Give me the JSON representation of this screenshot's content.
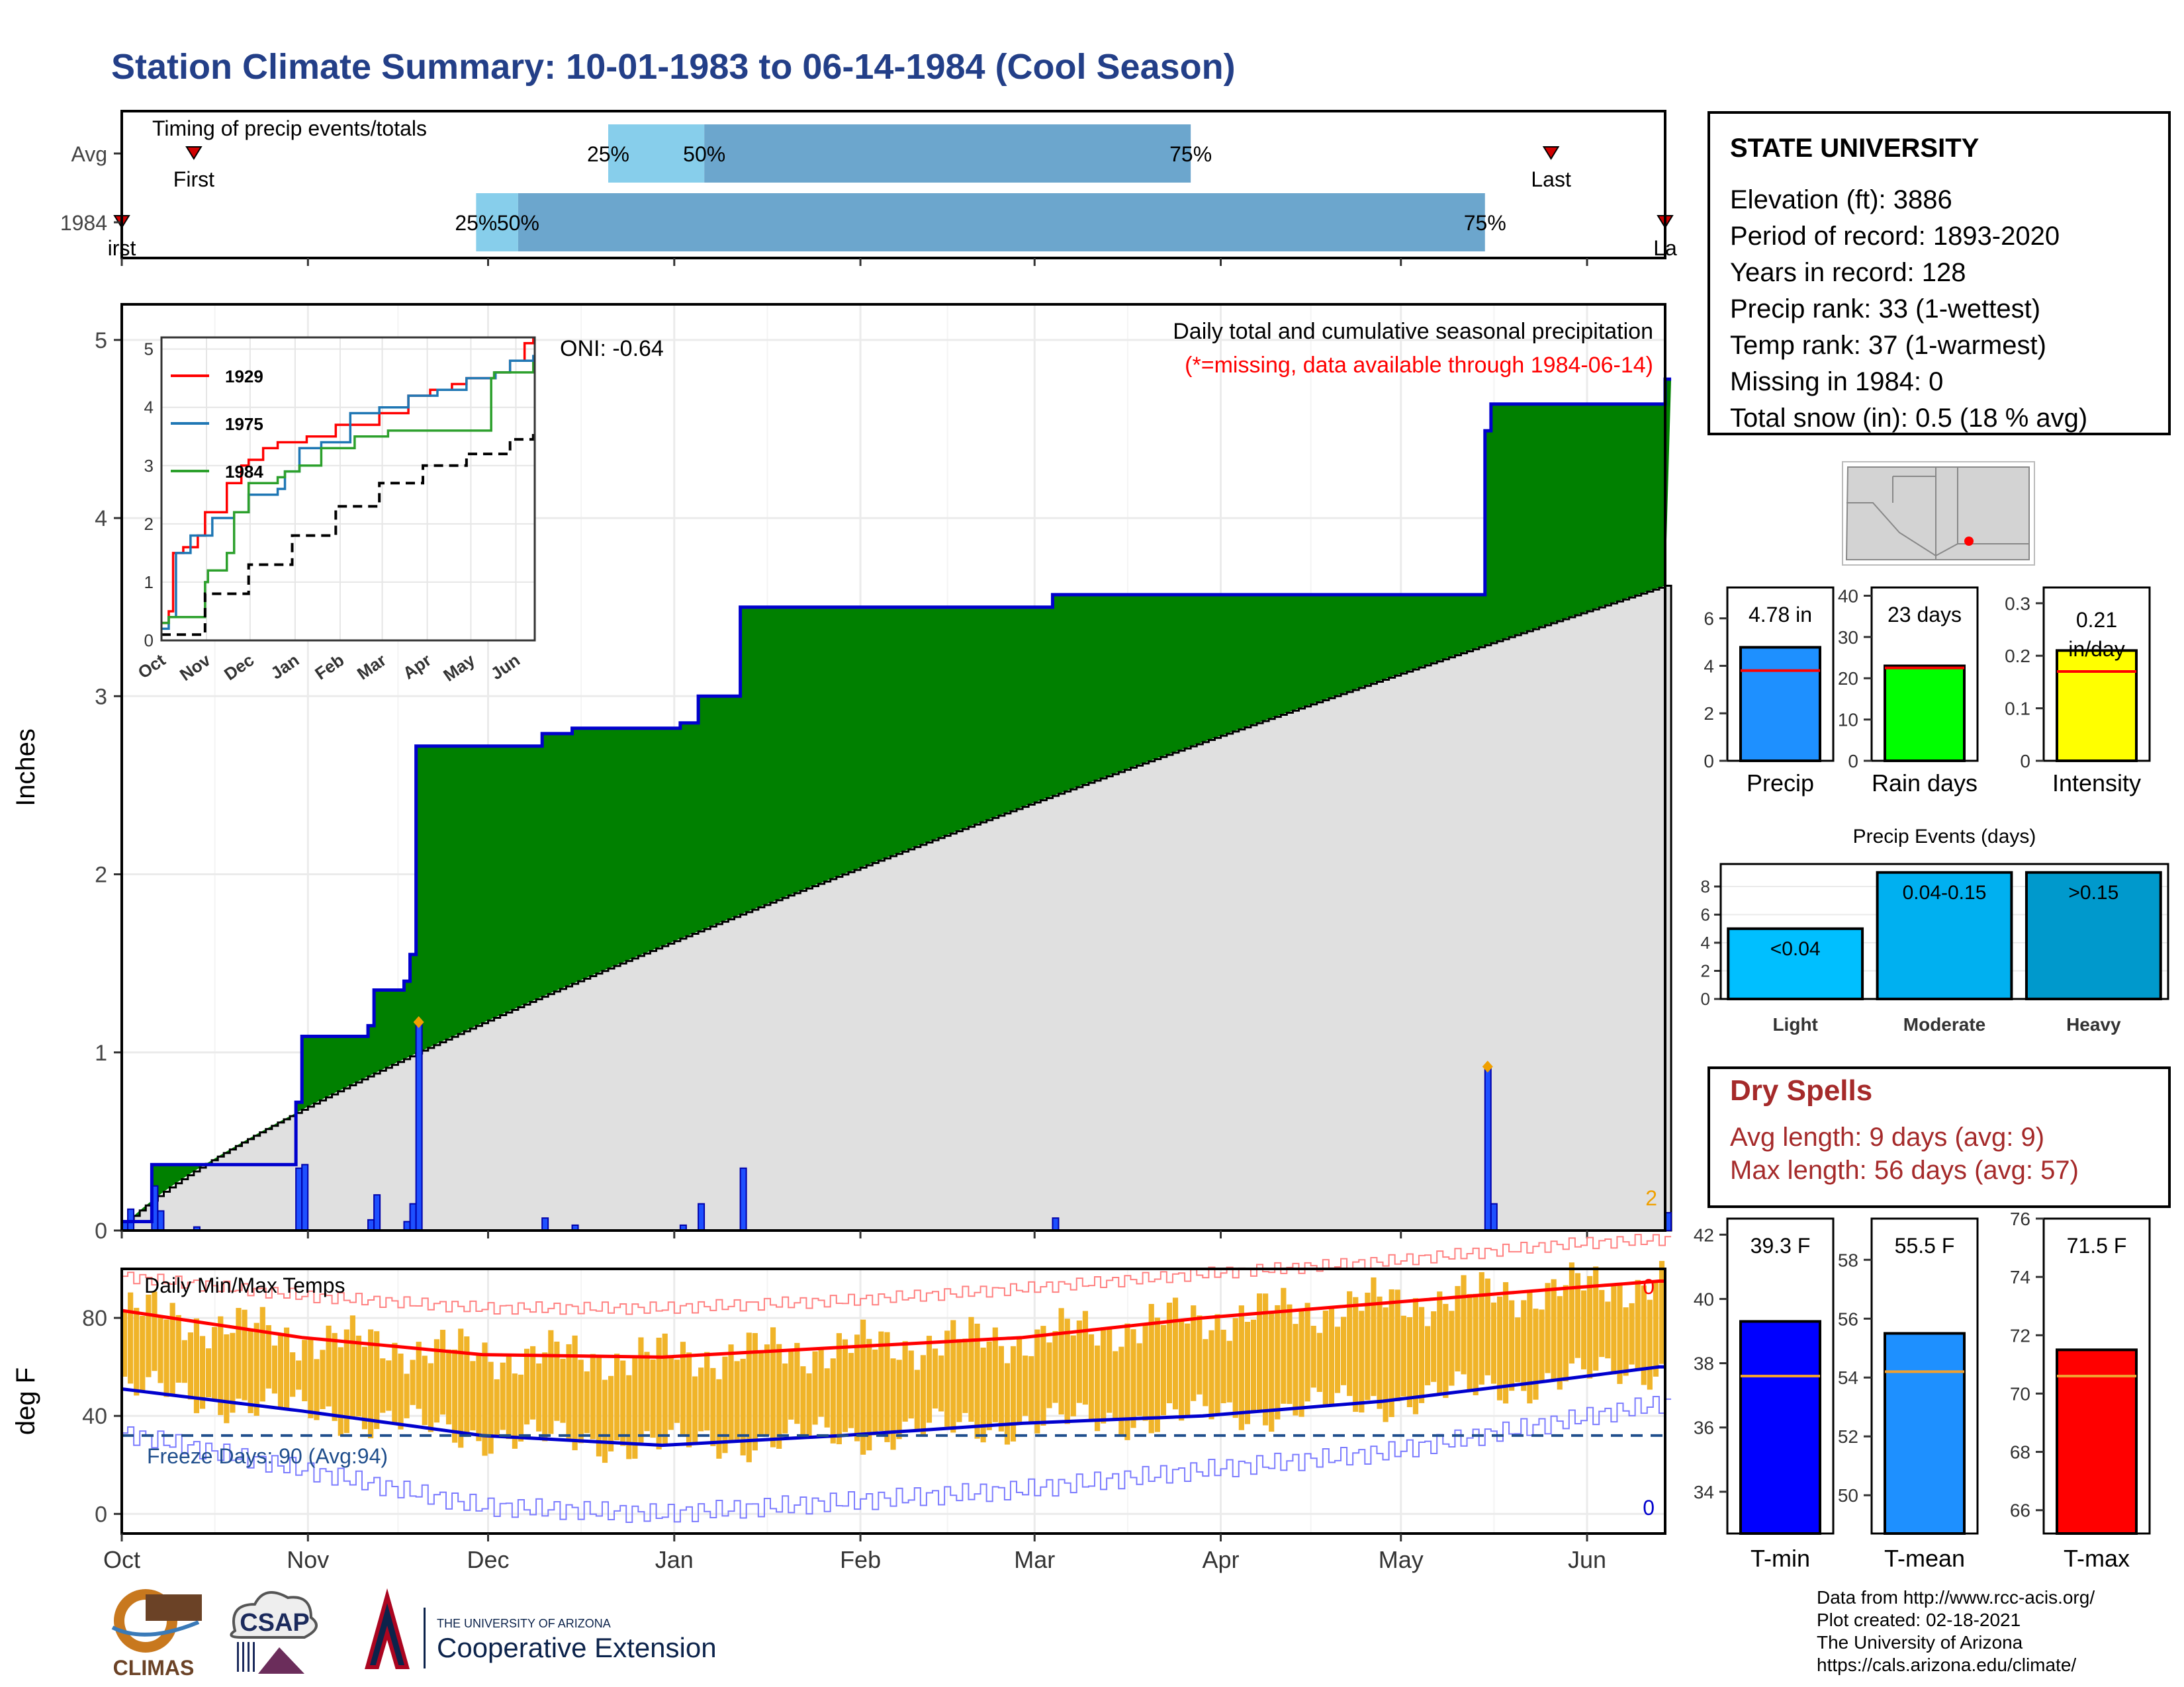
{
  "title": "Station Climate Summary: 10-01-1983 to 06-14-1984 (Cool Season)",
  "station": {
    "name": "STATE UNIVERSITY",
    "lines": [
      "Elevation (ft): 3886",
      "Period of record: 1893-2020",
      "Years in record: 128",
      "Precip rank: 33 (1-wettest)",
      "Temp rank: 37 (1-warmest)",
      "Missing in 1984: 0",
      "Total snow (in): 0.5 (18 % avg)"
    ]
  },
  "dry_spells": {
    "title": "Dry Spells",
    "avg": "Avg length: 9 days (avg: 9)",
    "max": "Max length: 56 days (avg: 57)"
  },
  "credits": [
    "Data from http://www.rcc-acis.org/",
    "Plot created: 02-18-2021",
    "The University of Arizona",
    "https://cals.arizona.edu/climate/"
  ],
  "logos": {
    "climas": "CLIMAS",
    "csap": "CSAP",
    "ua_line1": "THE UNIVERSITY OF ARIZONA",
    "ua_line2": "Cooperative Extension"
  },
  "colors": {
    "title": "#233f88",
    "green": "#008000",
    "precip_line": "#0000cd",
    "avg_fill": "#e0e0e0",
    "light_blue": "#87ceeb",
    "mid_blue": "#6ca6cd",
    "temp_bar": "#f0b429",
    "dry": "#a52a2a"
  },
  "chart_data": [
    {
      "id": "timing",
      "type": "bar",
      "title": "Timing of precip events/totals",
      "categories": [
        "Avg",
        "1984"
      ],
      "months": [
        "Oct",
        "Nov",
        "Dec",
        "Jan",
        "Feb",
        "Mar",
        "Apr",
        "May",
        "Jun"
      ],
      "rows": [
        {
          "name": "Avg",
          "first": "1983-10-13",
          "p25": "1983-12-21",
          "p50": "1984-01-06",
          "p75": "1984-03-27",
          "last": "1984-05-26",
          "labels": {
            "first": "First",
            "p25": "25%",
            "p50": "50%",
            "p75": "75%",
            "last": "Last"
          }
        },
        {
          "name": "1984",
          "first": "1983-10-01",
          "p25": "1983-11-29",
          "p50": "1983-12-06",
          "p75": "1984-05-15",
          "last": "1984-06-14",
          "labels": {
            "first": "irst",
            "p25": "25%",
            "p50": "50%",
            "p75": "75%",
            "last": "La"
          }
        }
      ]
    },
    {
      "id": "precip",
      "type": "area",
      "title": "Daily total and cumulative seasonal precipitation",
      "subtitle": "(*=missing, data available through 1984-06-14)",
      "annotation": "ONI: -0.64",
      "corner_count": "2",
      "ylabel": "Inches",
      "ylim": [
        0,
        5.2
      ],
      "yticks": [
        0,
        1,
        2,
        3,
        4,
        5
      ],
      "months": [
        "Oct",
        "Nov",
        "Dec",
        "Jan",
        "Feb",
        "Mar",
        "Apr",
        "May",
        "Jun"
      ],
      "avg_cumulative_end": 3.62,
      "daily_events": [
        {
          "date": "1983-10-01",
          "value": 0.05
        },
        {
          "date": "1983-10-02",
          "value": 0.12
        },
        {
          "date": "1983-10-06",
          "value": 0.25
        },
        {
          "date": "1983-10-07",
          "value": 0.11
        },
        {
          "date": "1983-10-13",
          "value": 0.02
        },
        {
          "date": "1983-10-30",
          "value": 0.35
        },
        {
          "date": "1983-10-31",
          "value": 0.37
        },
        {
          "date": "1983-11-11",
          "value": 0.06
        },
        {
          "date": "1983-11-12",
          "value": 0.2
        },
        {
          "date": "1983-11-17",
          "value": 0.05
        },
        {
          "date": "1983-11-18",
          "value": 0.15
        },
        {
          "date": "1983-11-19",
          "value": 1.17
        },
        {
          "date": "1983-12-10",
          "value": 0.07
        },
        {
          "date": "1983-12-15",
          "value": 0.03
        },
        {
          "date": "1984-01-02",
          "value": 0.03
        },
        {
          "date": "1984-01-05",
          "value": 0.15
        },
        {
          "date": "1984-01-12",
          "value": 0.35
        },
        {
          "date": "1984-03-04",
          "value": 0.07
        },
        {
          "date": "1984-05-15",
          "value": 0.92
        },
        {
          "date": "1984-05-16",
          "value": 0.15
        },
        {
          "date": "1984-06-14",
          "value": 0.1
        }
      ],
      "series": [
        {
          "name": "1984 cumulative",
          "x": [
            "1983-10-01",
            "1983-10-06",
            "1983-10-30",
            "1983-10-31",
            "1983-11-11",
            "1983-11-12",
            "1983-11-17",
            "1983-11-18",
            "1983-11-19",
            "1983-12-10",
            "1983-12-15",
            "1984-01-02",
            "1984-01-05",
            "1984-01-12",
            "1984-03-04",
            "1984-05-15",
            "1984-05-16",
            "1984-06-14"
          ],
          "values": [
            0.05,
            0.37,
            0.72,
            1.09,
            1.15,
            1.35,
            1.4,
            1.55,
            2.72,
            2.79,
            2.82,
            2.85,
            3.0,
            3.5,
            3.57,
            4.49,
            4.64,
            4.78
          ]
        }
      ]
    },
    {
      "id": "inset",
      "type": "line",
      "months": [
        "Oct",
        "Nov",
        "Dec",
        "Jan",
        "Feb",
        "Mar",
        "Apr",
        "May",
        "Jun"
      ],
      "ylim": [
        0,
        5.2
      ],
      "yticks": [
        0,
        1,
        2,
        3,
        4,
        5
      ],
      "series": [
        {
          "name": "1929",
          "color": "#ff0000",
          "x": [
            0,
            5,
            8,
            15,
            25,
            30,
            45,
            55,
            60,
            70,
            80,
            100,
            120,
            150,
            170,
            185,
            200,
            210,
            230,
            240,
            250,
            256
          ],
          "values": [
            0.3,
            0.5,
            1.5,
            1.6,
            1.8,
            2.2,
            2.7,
            3.0,
            3.1,
            3.3,
            3.4,
            3.5,
            3.7,
            3.9,
            4.2,
            4.3,
            4.4,
            4.5,
            4.6,
            4.8,
            5.1,
            5.2
          ]
        },
        {
          "name": "1975",
          "color": "#1f77b4",
          "x": [
            0,
            5,
            10,
            20,
            35,
            50,
            60,
            80,
            85,
            95,
            110,
            130,
            150,
            170,
            190,
            210,
            230,
            240,
            256
          ],
          "values": [
            0.2,
            0.4,
            1.5,
            1.8,
            2.1,
            2.2,
            2.5,
            2.6,
            2.9,
            3.3,
            3.4,
            3.9,
            4.0,
            4.2,
            4.3,
            4.5,
            4.6,
            4.8,
            4.9
          ]
        },
        {
          "name": "1984",
          "color": "#2ca02c",
          "x": [
            0,
            5,
            30,
            32,
            45,
            50,
            60,
            80,
            85,
            95,
            110,
            133,
            140,
            156,
            180,
            200,
            227,
            229,
            256
          ],
          "values": [
            0.3,
            0.4,
            1.0,
            1.2,
            1.5,
            2.2,
            2.7,
            2.8,
            2.9,
            3.0,
            3.3,
            3.5,
            3.5,
            3.6,
            3.6,
            3.6,
            4.5,
            4.6,
            4.78
          ]
        },
        {
          "name": "Avg",
          "color": "#000000",
          "dash": true,
          "x": [
            0,
            30,
            60,
            90,
            120,
            150,
            180,
            210,
            240,
            256
          ],
          "values": [
            0.1,
            0.8,
            1.3,
            1.8,
            2.3,
            2.7,
            3.0,
            3.2,
            3.45,
            3.62
          ]
        }
      ]
    },
    {
      "id": "gauges",
      "type": "bar",
      "items": [
        {
          "name": "Precip",
          "value": 4.78,
          "avg": 3.8,
          "label": "4.78 in",
          "ylim": [
            0,
            7.3
          ],
          "yticks": [
            0,
            2,
            4,
            6
          ],
          "color": "#1e90ff"
        },
        {
          "name": "Rain days",
          "value": 23,
          "avg": 22.5,
          "label": "23 days",
          "ylim": [
            0,
            42
          ],
          "yticks": [
            0,
            10,
            20,
            30,
            40
          ],
          "color": "#00ff00"
        },
        {
          "name": "Intensity",
          "value": 0.21,
          "avg": 0.17,
          "label": "0.21\nin/day",
          "label_line1": "0.21",
          "label_line2": "in/day",
          "ylim": [
            0,
            0.33
          ],
          "yticks": [
            0.0,
            0.1,
            0.2,
            0.3
          ],
          "color": "#ffff00"
        }
      ]
    },
    {
      "id": "events",
      "type": "bar",
      "title": "Precip Events (days)",
      "categories": [
        "Light",
        "Moderate",
        "Heavy"
      ],
      "bar_labels": [
        "<0.04",
        "0.04-0.15",
        ">0.15"
      ],
      "values": [
        5,
        9,
        9
      ],
      "ylim": [
        0,
        9.6
      ],
      "yticks": [
        0,
        2,
        4,
        6,
        8
      ]
    },
    {
      "id": "temps",
      "type": "bar",
      "title": "Daily Min/Max Temps",
      "annotation": "Freeze Days: 90 (Avg:94)",
      "ylabel": "deg F",
      "ylim": [
        -8,
        100
      ],
      "yticks": [
        0,
        40,
        80
      ],
      "freeze_line": 32,
      "max_record_count": "0",
      "min_record_count": "0",
      "months": [
        "Oct",
        "Nov",
        "Dec",
        "Jan",
        "Feb",
        "Mar",
        "Apr",
        "May",
        "Jun"
      ],
      "series": [
        {
          "name": "avg max",
          "color": "#ff0000",
          "x": [
            0,
            30,
            60,
            90,
            120,
            150,
            180,
            210,
            240,
            256
          ],
          "values": [
            83,
            72,
            65,
            64,
            68,
            72,
            80,
            86,
            92,
            95
          ]
        },
        {
          "name": "avg min",
          "color": "#0000cd",
          "x": [
            0,
            30,
            60,
            90,
            120,
            150,
            180,
            210,
            240,
            256
          ],
          "values": [
            51,
            42,
            32,
            28,
            32,
            37,
            40,
            46,
            55,
            60
          ]
        },
        {
          "name": "record max",
          "color": "#ff8080",
          "x": [
            0,
            30,
            60,
            90,
            120,
            150,
            180,
            210,
            240,
            256
          ],
          "values": [
            97,
            89,
            84,
            84,
            87,
            92,
            98,
            103,
            110,
            112
          ]
        },
        {
          "name": "record min",
          "color": "#7b7bff",
          "x": [
            0,
            30,
            60,
            90,
            120,
            150,
            180,
            210,
            240,
            256
          ],
          "values": [
            33,
            18,
            3,
            0,
            5,
            10,
            18,
            25,
            38,
            45
          ]
        }
      ]
    },
    {
      "id": "temp_gauges",
      "type": "bar",
      "items": [
        {
          "name": "T-min",
          "value": 39.3,
          "avg": 37.6,
          "label": "39.3 F",
          "ylim": [
            32.7,
            42.5
          ],
          "yticks": [
            34,
            36,
            38,
            40,
            42
          ],
          "color": "#0000ff"
        },
        {
          "name": "T-mean",
          "value": 55.5,
          "avg": 54.2,
          "label": "55.5 F",
          "ylim": [
            48.7,
            59.4
          ],
          "yticks": [
            50,
            52,
            54,
            56,
            58
          ],
          "color": "#1e90ff"
        },
        {
          "name": "T-max",
          "value": 71.5,
          "avg": 70.6,
          "label": "71.5 F",
          "ylim": [
            65.2,
            76.0
          ],
          "yticks": [
            66,
            68,
            70,
            72,
            74,
            76
          ],
          "color": "#ff0000"
        }
      ]
    }
  ]
}
